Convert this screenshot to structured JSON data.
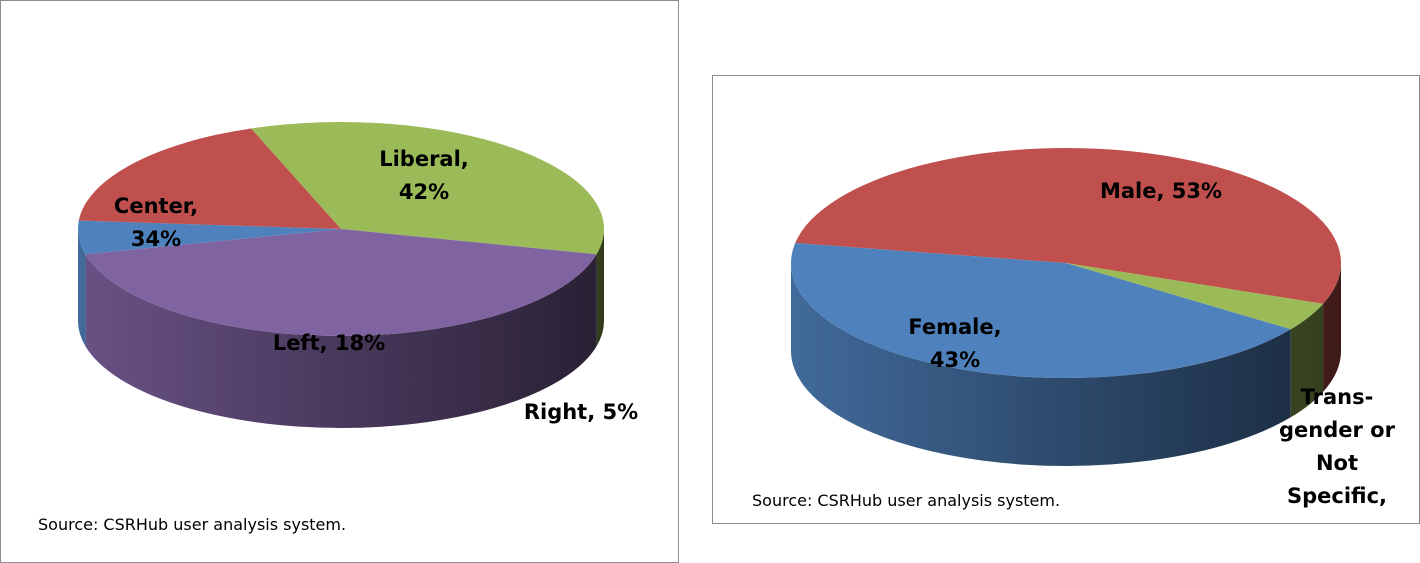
{
  "chart_data": [
    {
      "type": "pie",
      "style": "3d",
      "categories": [
        "Center",
        "Liberal",
        "Right",
        "Left"
      ],
      "values": [
        34,
        42,
        5,
        18
      ],
      "colors": [
        "#9BBB59",
        "#8064A2",
        "#4F81BD",
        "#C0504D"
      ],
      "data_labels": [
        {
          "lines": [
            "Center,",
            "34%"
          ]
        },
        {
          "lines": [
            "Liberal,",
            "42%"
          ]
        },
        {
          "lines": [
            "Right, 5%"
          ]
        },
        {
          "lines": [
            "Left, 18%"
          ]
        }
      ],
      "source": "Source: CSRHub user analysis system."
    },
    {
      "type": "pie",
      "style": "3d",
      "categories": [
        "Male",
        "Transgender or Not Specific",
        "Female"
      ],
      "values": [
        53,
        4,
        43
      ],
      "colors": [
        "#C0504D",
        "#9BBB59",
        "#4F81BD"
      ],
      "data_labels": [
        {
          "lines": [
            "Male, 53%"
          ]
        },
        {
          "lines": [
            "Trans-",
            "gender or",
            "Not",
            "Specific,"
          ]
        },
        {
          "lines": [
            "Female,",
            "43%"
          ]
        }
      ],
      "source": "Source: CSRHub user analysis system."
    }
  ]
}
